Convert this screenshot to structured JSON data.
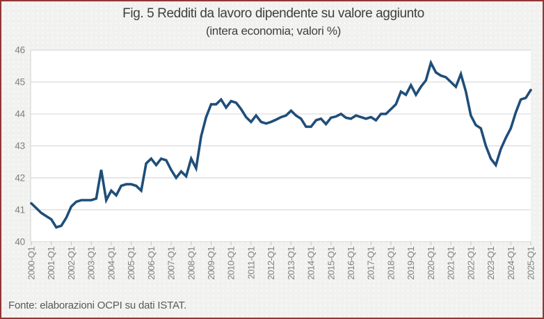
{
  "figure": {
    "title": "Fig. 5 Redditi da lavoro dipendente su valore aggiunto",
    "subtitle": "(intera economia; valori %)",
    "source": "Fonte: elaborazioni OCPI su dati ISTAT."
  },
  "colors": {
    "line": "#1f4e79",
    "gridline": "#d9d9d9",
    "tick_mark": "#bfbfbf",
    "axis_label": "#7f7f7f",
    "title_text": "#3f3f3f",
    "source_text": "#595959",
    "plot_background": "#ffffff",
    "page_background": "#f1f1f0",
    "frame_border": "#943634"
  },
  "chart_data": {
    "type": "line",
    "title": "Fig. 5 Redditi da lavoro dipendente su valore aggiunto",
    "subtitle": "(intera economia; valori %)",
    "frequency": "quarterly",
    "x_start": "2000-Q1",
    "x_end": "2025-Q1",
    "x_tick_labels": [
      "2000-Q1",
      "2001-Q1",
      "2002-Q1",
      "2003-Q1",
      "2004-Q1",
      "2005-Q1",
      "2006-Q1",
      "2007-Q1",
      "2008-Q1",
      "2009-Q1",
      "2010-Q1",
      "2011-Q1",
      "2012-Q1",
      "2013-Q1",
      "2014-Q1",
      "2015-Q1",
      "2016-Q1",
      "2017-Q1",
      "2018-Q1",
      "2019-Q1",
      "2020-Q1",
      "2021-Q1",
      "2022-Q1",
      "2023-Q1",
      "2024-Q1",
      "2025-Q1"
    ],
    "y_ticks": [
      40,
      41,
      42,
      43,
      44,
      45,
      46
    ],
    "ylim": [
      40,
      46
    ],
    "grid": "horizontal",
    "legend": "none",
    "series": [
      {
        "color": "#1f4e79",
        "values": [
          41.2,
          41.05,
          40.9,
          40.8,
          40.7,
          40.45,
          40.5,
          40.75,
          41.1,
          41.25,
          41.3,
          41.3,
          41.3,
          41.35,
          42.25,
          41.3,
          41.6,
          41.45,
          41.75,
          41.8,
          41.8,
          41.75,
          41.6,
          42.45,
          42.6,
          42.4,
          42.6,
          42.55,
          42.25,
          42.0,
          42.2,
          42.05,
          42.6,
          42.3,
          43.3,
          43.9,
          44.3,
          44.3,
          44.45,
          44.2,
          44.4,
          44.35,
          44.15,
          43.9,
          43.75,
          43.95,
          43.75,
          43.7,
          43.75,
          43.82,
          43.9,
          43.95,
          44.1,
          43.95,
          43.85,
          43.6,
          43.6,
          43.8,
          43.85,
          43.68,
          43.88,
          43.92,
          44.0,
          43.88,
          43.85,
          43.95,
          43.9,
          43.85,
          43.9,
          43.8,
          44.0,
          44.0,
          44.15,
          44.3,
          44.7,
          44.6,
          44.9,
          44.6,
          44.85,
          45.05,
          45.6,
          45.3,
          45.2,
          45.15,
          45.0,
          44.85,
          45.25,
          44.7,
          43.95,
          43.65,
          43.55,
          43.0,
          42.6,
          42.4,
          42.9,
          43.25,
          43.55,
          44.05,
          44.45,
          44.5,
          44.75
        ]
      }
    ]
  }
}
